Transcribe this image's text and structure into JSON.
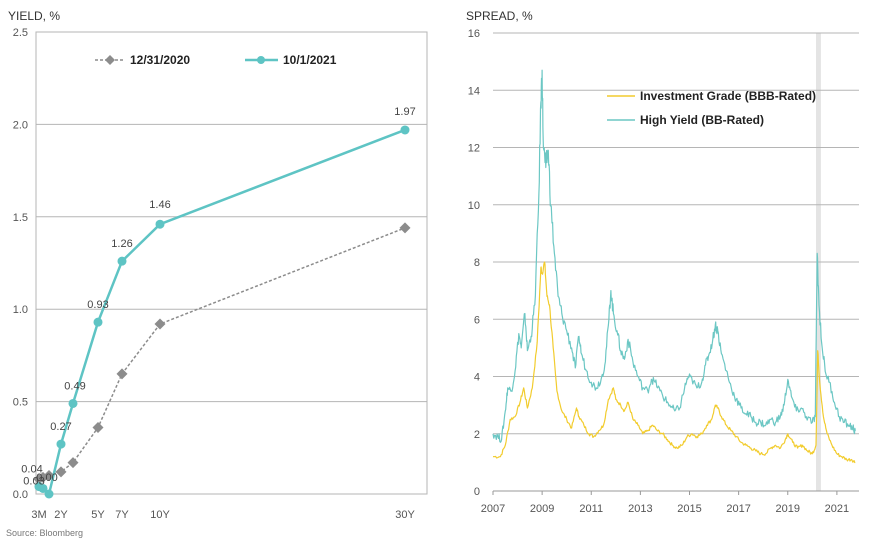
{
  "chart_data": [
    {
      "type": "line",
      "title": "",
      "ylabel": "YIELD, %",
      "xlabel": "",
      "ylim": [
        0,
        2.5
      ],
      "yticks": [
        "0.0",
        "0.5",
        "1.0",
        "1.5",
        "2.0",
        "2.5"
      ],
      "x_ticks": [
        "3M",
        "2Y",
        "5Y",
        "7Y",
        "10Y",
        "30Y"
      ],
      "x_maturities_years": [
        0.08,
        0.5,
        1,
        2,
        3,
        5,
        7,
        10,
        30
      ],
      "series": [
        {
          "name": "12/31/2020",
          "color": "#8c8c8c",
          "style": "dashed",
          "marker": "diamond",
          "values": [
            0.08,
            0.09,
            0.1,
            0.12,
            0.17,
            0.36,
            0.65,
            0.92,
            1.44
          ]
        },
        {
          "name": "10/1/2021",
          "color": "#5ec4c4",
          "style": "solid",
          "marker": "circle",
          "values": [
            0.04,
            0.03,
            0.0,
            0.27,
            0.49,
            0.93,
            1.26,
            1.46,
            1.97
          ],
          "data_labels": [
            "0.04",
            "0.03",
            "0.00",
            "0.27",
            "0.49",
            "0.93",
            "1.26",
            "1.46",
            "1.97"
          ]
        }
      ],
      "legend": "top",
      "grid": "horizontal",
      "source": "Source: Bloomberg"
    },
    {
      "type": "line",
      "title": "",
      "ylabel": "SPREAD, %",
      "xlabel": "",
      "ylim": [
        0,
        16
      ],
      "yticks": [
        "0",
        "2",
        "4",
        "6",
        "8",
        "10",
        "12",
        "14",
        "16"
      ],
      "xlim": [
        2007,
        2021.9
      ],
      "xticks": [
        "2007",
        "2009",
        "2011",
        "2013",
        "2015",
        "2017",
        "2019",
        "2021"
      ],
      "shaded_period": [
        2020.15,
        2020.35
      ],
      "series": [
        {
          "name": "Investment Grade (BBB-Rated)",
          "color": "#f2cc2e",
          "points": [
            [
              2007.0,
              1.2
            ],
            [
              2007.3,
              1.2
            ],
            [
              2007.5,
              1.6
            ],
            [
              2007.7,
              2.5
            ],
            [
              2007.9,
              2.6
            ],
            [
              2008.1,
              3.1
            ],
            [
              2008.25,
              3.6
            ],
            [
              2008.4,
              2.9
            ],
            [
              2008.6,
              3.6
            ],
            [
              2008.8,
              5.2
            ],
            [
              2008.95,
              7.8
            ],
            [
              2009.0,
              7.6
            ],
            [
              2009.1,
              8.0
            ],
            [
              2009.2,
              6.8
            ],
            [
              2009.3,
              6.5
            ],
            [
              2009.45,
              5.0
            ],
            [
              2009.6,
              3.5
            ],
            [
              2009.8,
              2.8
            ],
            [
              2010.0,
              2.5
            ],
            [
              2010.2,
              2.2
            ],
            [
              2010.4,
              2.9
            ],
            [
              2010.5,
              2.6
            ],
            [
              2010.7,
              2.3
            ],
            [
              2010.9,
              2.0
            ],
            [
              2011.1,
              1.9
            ],
            [
              2011.3,
              2.1
            ],
            [
              2011.5,
              2.3
            ],
            [
              2011.7,
              3.2
            ],
            [
              2011.9,
              3.6
            ],
            [
              2012.0,
              3.2
            ],
            [
              2012.2,
              3.0
            ],
            [
              2012.35,
              2.8
            ],
            [
              2012.5,
              3.1
            ],
            [
              2012.7,
              2.5
            ],
            [
              2012.9,
              2.3
            ],
            [
              2013.1,
              2.0
            ],
            [
              2013.3,
              2.1
            ],
            [
              2013.5,
              2.3
            ],
            [
              2013.7,
              2.1
            ],
            [
              2013.9,
              2.0
            ],
            [
              2014.1,
              1.8
            ],
            [
              2014.3,
              1.6
            ],
            [
              2014.5,
              1.5
            ],
            [
              2014.7,
              1.6
            ],
            [
              2014.9,
              1.9
            ],
            [
              2015.1,
              2.0
            ],
            [
              2015.3,
              1.9
            ],
            [
              2015.5,
              2.0
            ],
            [
              2015.7,
              2.3
            ],
            [
              2015.9,
              2.5
            ],
            [
              2016.05,
              3.0
            ],
            [
              2016.15,
              2.9
            ],
            [
              2016.3,
              2.6
            ],
            [
              2016.5,
              2.3
            ],
            [
              2016.7,
              2.1
            ],
            [
              2016.9,
              1.9
            ],
            [
              2017.1,
              1.7
            ],
            [
              2017.3,
              1.6
            ],
            [
              2017.5,
              1.5
            ],
            [
              2017.7,
              1.4
            ],
            [
              2017.9,
              1.3
            ],
            [
              2018.1,
              1.3
            ],
            [
              2018.3,
              1.5
            ],
            [
              2018.5,
              1.6
            ],
            [
              2018.7,
              1.5
            ],
            [
              2018.9,
              1.8
            ],
            [
              2019.0,
              2.0
            ],
            [
              2019.2,
              1.7
            ],
            [
              2019.4,
              1.5
            ],
            [
              2019.6,
              1.6
            ],
            [
              2019.8,
              1.4
            ],
            [
              2020.0,
              1.3
            ],
            [
              2020.15,
              1.6
            ],
            [
              2020.22,
              4.9
            ],
            [
              2020.3,
              3.8
            ],
            [
              2020.45,
              2.6
            ],
            [
              2020.6,
              2.0
            ],
            [
              2020.8,
              1.6
            ],
            [
              2021.0,
              1.3
            ],
            [
              2021.2,
              1.2
            ],
            [
              2021.4,
              1.1
            ],
            [
              2021.6,
              1.1
            ],
            [
              2021.75,
              1.0
            ]
          ]
        },
        {
          "name": "High Yield (BB-Rated)",
          "color": "#6cc7c4",
          "points": [
            [
              2007.0,
              2.0
            ],
            [
              2007.2,
              1.9
            ],
            [
              2007.35,
              1.8
            ],
            [
              2007.5,
              2.8
            ],
            [
              2007.6,
              3.6
            ],
            [
              2007.75,
              3.5
            ],
            [
              2007.9,
              4.2
            ],
            [
              2008.05,
              5.5
            ],
            [
              2008.15,
              5.0
            ],
            [
              2008.3,
              6.2
            ],
            [
              2008.4,
              4.9
            ],
            [
              2008.55,
              5.4
            ],
            [
              2008.7,
              6.5
            ],
            [
              2008.85,
              9.8
            ],
            [
              2008.95,
              13.6
            ],
            [
              2009.0,
              14.7
            ],
            [
              2009.05,
              12.0
            ],
            [
              2009.15,
              11.3
            ],
            [
              2009.25,
              11.9
            ],
            [
              2009.35,
              10.0
            ],
            [
              2009.5,
              8.3
            ],
            [
              2009.65,
              6.8
            ],
            [
              2009.8,
              6.2
            ],
            [
              2010.0,
              5.6
            ],
            [
              2010.2,
              5.0
            ],
            [
              2010.35,
              4.3
            ],
            [
              2010.5,
              5.4
            ],
            [
              2010.6,
              4.8
            ],
            [
              2010.8,
              4.2
            ],
            [
              2011.0,
              3.8
            ],
            [
              2011.2,
              3.6
            ],
            [
              2011.4,
              3.9
            ],
            [
              2011.55,
              4.4
            ],
            [
              2011.7,
              5.8
            ],
            [
              2011.8,
              7.0
            ],
            [
              2011.9,
              6.2
            ],
            [
              2012.05,
              5.6
            ],
            [
              2012.2,
              4.9
            ],
            [
              2012.35,
              4.6
            ],
            [
              2012.5,
              5.3
            ],
            [
              2012.7,
              4.5
            ],
            [
              2012.9,
              4.0
            ],
            [
              2013.1,
              3.6
            ],
            [
              2013.3,
              3.5
            ],
            [
              2013.45,
              3.9
            ],
            [
              2013.6,
              3.8
            ],
            [
              2013.8,
              3.5
            ],
            [
              2014.0,
              3.2
            ],
            [
              2014.2,
              3.0
            ],
            [
              2014.4,
              2.8
            ],
            [
              2014.6,
              2.9
            ],
            [
              2014.8,
              3.6
            ],
            [
              2014.95,
              4.0
            ],
            [
              2015.1,
              3.9
            ],
            [
              2015.3,
              3.6
            ],
            [
              2015.5,
              3.8
            ],
            [
              2015.65,
              4.4
            ],
            [
              2015.8,
              4.8
            ],
            [
              2015.95,
              5.3
            ],
            [
              2016.05,
              5.8
            ],
            [
              2016.15,
              5.6
            ],
            [
              2016.3,
              4.8
            ],
            [
              2016.5,
              4.2
            ],
            [
              2016.7,
              3.6
            ],
            [
              2016.9,
              3.2
            ],
            [
              2017.1,
              2.9
            ],
            [
              2017.3,
              2.7
            ],
            [
              2017.5,
              2.6
            ],
            [
              2017.7,
              2.4
            ],
            [
              2017.9,
              2.4
            ],
            [
              2018.1,
              2.3
            ],
            [
              2018.3,
              2.5
            ],
            [
              2018.5,
              2.4
            ],
            [
              2018.7,
              2.6
            ],
            [
              2018.85,
              3.0
            ],
            [
              2019.0,
              3.9
            ],
            [
              2019.15,
              3.3
            ],
            [
              2019.35,
              2.8
            ],
            [
              2019.55,
              2.9
            ],
            [
              2019.75,
              2.6
            ],
            [
              2020.0,
              2.4
            ],
            [
              2020.12,
              2.6
            ],
            [
              2020.2,
              8.3
            ],
            [
              2020.27,
              6.5
            ],
            [
              2020.4,
              5.0
            ],
            [
              2020.55,
              4.1
            ],
            [
              2020.7,
              3.8
            ],
            [
              2020.9,
              3.1
            ],
            [
              2021.1,
              2.6
            ],
            [
              2021.3,
              2.4
            ],
            [
              2021.5,
              2.3
            ],
            [
              2021.65,
              2.2
            ],
            [
              2021.75,
              2.1
            ]
          ]
        }
      ],
      "legend": "top-right",
      "grid": "horizontal"
    }
  ],
  "source": "Source: Bloomberg"
}
